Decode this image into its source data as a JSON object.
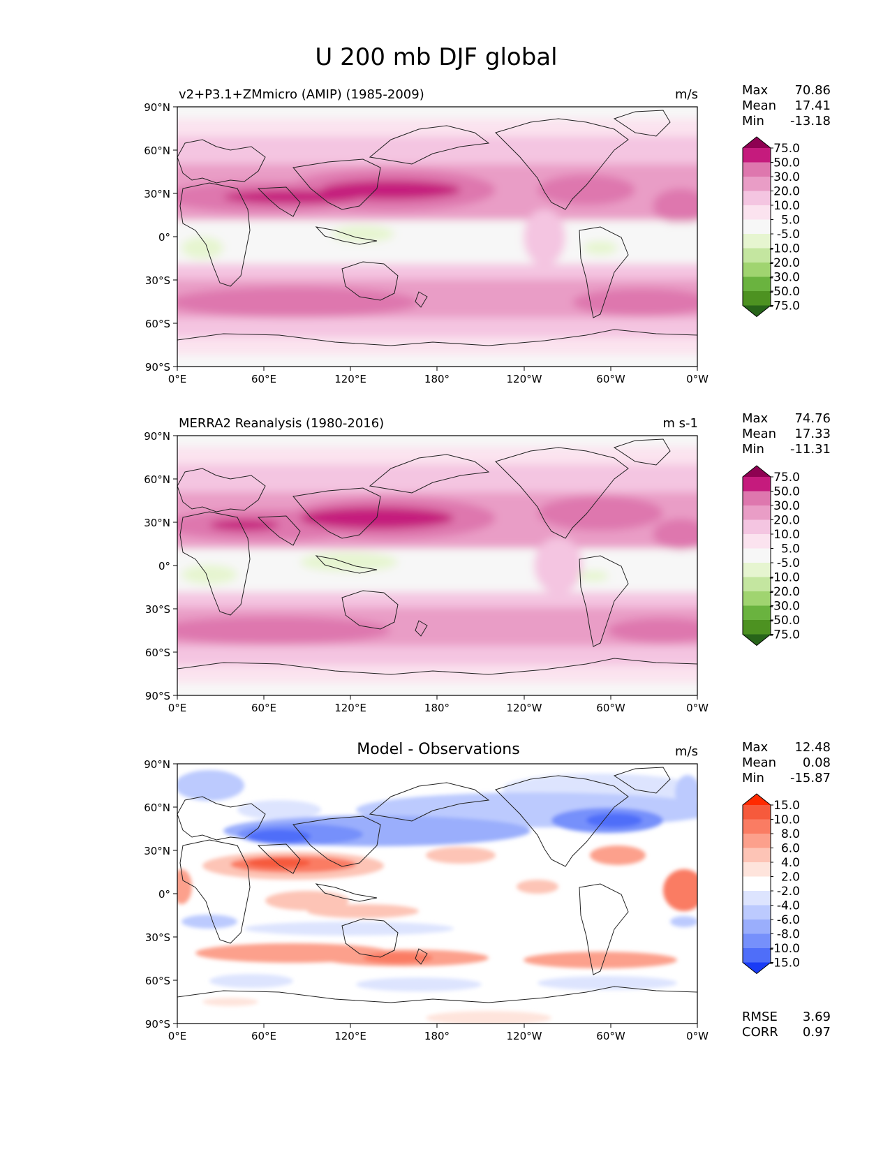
{
  "figure": {
    "title": "U 200 mb DJF global"
  },
  "chart_data": [
    {
      "type": "contourf-map",
      "title": "v2+P3.1+ZMmicro (AMIP) (1985-2009)",
      "units": "m/s",
      "stats": [
        {
          "label": "Max",
          "value": "70.86"
        },
        {
          "label": "Mean",
          "value": "17.41"
        },
        {
          "label": "Min",
          "value": "-13.18"
        }
      ],
      "colorbar": {
        "levels": [
          "75.0",
          "50.0",
          "30.0",
          "20.0",
          "10.0",
          "5.0",
          "-5.0",
          "-10.0",
          "-20.0",
          "-30.0",
          "-50.0",
          "-75.0"
        ],
        "colors": [
          "#8e0152",
          "#c51b7d",
          "#de77ae",
          "#e99dc6",
          "#f4c5e1",
          "#fbe3ef",
          "#f7f7f7",
          "#e6f5d0",
          "#c4e6a0",
          "#a0d470",
          "#6ab33f",
          "#4d9221",
          "#276419"
        ]
      },
      "xticks": [
        "0°E",
        "60°E",
        "120°E",
        "180°",
        "120°W",
        "60°W",
        "0°W"
      ],
      "yticks": [
        "90°N",
        "60°N",
        "30°N",
        "0°",
        "30°S",
        "60°S",
        "90°S"
      ]
    },
    {
      "type": "contourf-map",
      "title": "MERRA2 Reanalysis (1980-2016)",
      "units": "m s-1",
      "stats": [
        {
          "label": "Max",
          "value": "74.76"
        },
        {
          "label": "Mean",
          "value": "17.33"
        },
        {
          "label": "Min",
          "value": "-11.31"
        }
      ],
      "colorbar": {
        "levels": [
          "75.0",
          "50.0",
          "30.0",
          "20.0",
          "10.0",
          "5.0",
          "-5.0",
          "-10.0",
          "-20.0",
          "-30.0",
          "-50.0",
          "-75.0"
        ],
        "colors": [
          "#8e0152",
          "#c51b7d",
          "#de77ae",
          "#e99dc6",
          "#f4c5e1",
          "#fbe3ef",
          "#f7f7f7",
          "#e6f5d0",
          "#c4e6a0",
          "#a0d470",
          "#6ab33f",
          "#4d9221",
          "#276419"
        ]
      },
      "xticks": [
        "0°E",
        "60°E",
        "120°E",
        "180°",
        "120°W",
        "60°W",
        "0°W"
      ],
      "yticks": [
        "90°N",
        "60°N",
        "30°N",
        "0°",
        "30°S",
        "60°S",
        "90°S"
      ]
    },
    {
      "type": "contourf-map",
      "title": "Model - Observations",
      "units": "m/s",
      "stats": [
        {
          "label": "Max",
          "value": "12.48"
        },
        {
          "label": "Mean",
          "value": "0.08"
        },
        {
          "label": "Min",
          "value": "-15.87"
        }
      ],
      "colorbar": {
        "levels": [
          "15.0",
          "10.0",
          "8.0",
          "6.0",
          "4.0",
          "2.0",
          "-2.0",
          "-4.0",
          "-6.0",
          "-8.0",
          "-10.0",
          "-15.0"
        ],
        "colors": [
          "#ff2a00",
          "#f65a3c",
          "#fa7c63",
          "#fca08c",
          "#fdc4b6",
          "#fee4dc",
          "#ffffff",
          "#dde4fe",
          "#bccafe",
          "#9aaefc",
          "#7690fb",
          "#4f6ef9",
          "#1a3cf5"
        ]
      },
      "xticks": [
        "0°E",
        "60°E",
        "120°E",
        "180°",
        "120°W",
        "60°W",
        "0°W"
      ],
      "yticks": [
        "90°N",
        "60°N",
        "30°N",
        "0°",
        "30°S",
        "60°S",
        "90°S"
      ],
      "metrics": [
        {
          "label": "RMSE",
          "value": "3.69"
        },
        {
          "label": "CORR",
          "value": "0.97"
        }
      ]
    }
  ]
}
